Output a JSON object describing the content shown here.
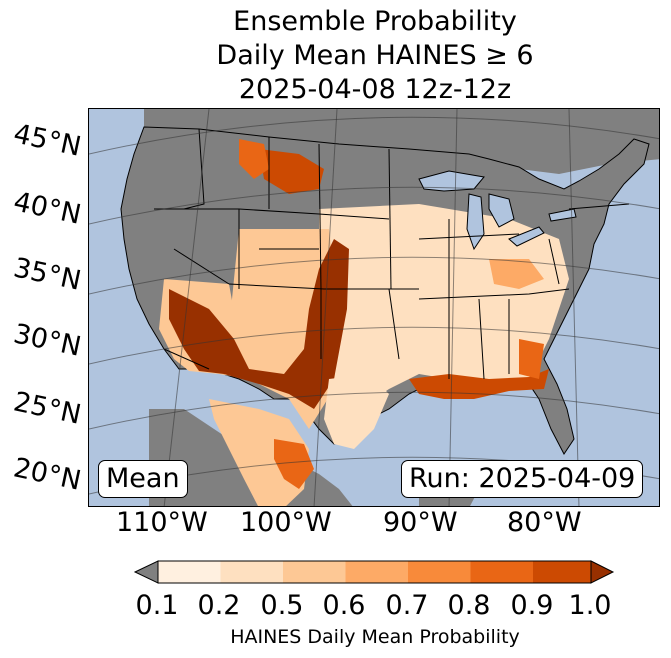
{
  "title": {
    "line1": "Ensemble Probability",
    "line2": "Daily Mean HAINES ≥ 6",
    "line3": "2025-04-08 12z-12z"
  },
  "map": {
    "latitude_labels": [
      "45°N",
      "40°N",
      "35°N",
      "30°N",
      "25°N",
      "20°N"
    ],
    "longitude_labels": [
      "110°W",
      "100°W",
      "90°W",
      "80°W"
    ],
    "mean_label": "Mean",
    "run_label": "Run: 2025-04-09",
    "colors": {
      "ocean": "#b0c4de",
      "land_below_threshold": "#808080",
      "lakes": "#b0c4de"
    }
  },
  "colorbar": {
    "label": "HAINES Daily Mean Probability",
    "ticks": [
      "0.1",
      "0.2",
      "0.5",
      "0.6",
      "0.7",
      "0.8",
      "0.9",
      "1.0"
    ],
    "under_color": "#808080",
    "colors": [
      "#fff0e0",
      "#fee0c0",
      "#fdc895",
      "#fdaa66",
      "#f88a3a",
      "#e96615",
      "#cc4a02",
      "#983000"
    ]
  }
}
